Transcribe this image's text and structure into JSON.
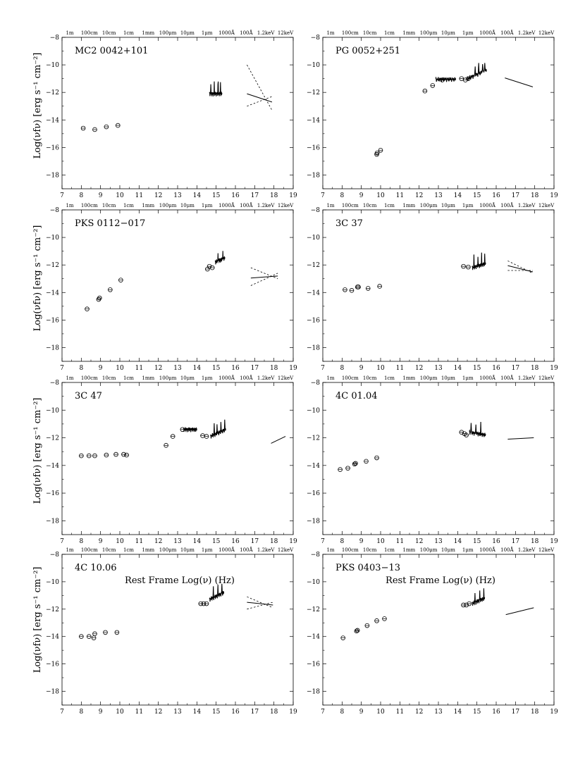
{
  "figure": {
    "xlabel": "Rest Frame Log(ν) (Hz)",
    "ylabel": "Log(νfν) [erg s⁻¹ cm⁻²]",
    "top_axis_labels": [
      "1m",
      "100cm",
      "10cm",
      "1cm",
      "1mm",
      "100μm",
      "10μm",
      "1μm",
      "1000Å",
      "100Å",
      "1.2keV",
      "12keV"
    ]
  },
  "chart_data": [
    {
      "type": "scatter",
      "title": "MC2 0042+101",
      "xlim": [
        7,
        19
      ],
      "ylim": [
        -19,
        -8
      ],
      "xticks": [
        7,
        8,
        9,
        10,
        11,
        12,
        13,
        14,
        15,
        16,
        17,
        18,
        19
      ],
      "yticks": [
        -8,
        -10,
        -12,
        -14,
        -16,
        -18
      ],
      "photometry": [
        [
          8.1,
          -14.6
        ],
        [
          8.7,
          -14.7
        ],
        [
          9.3,
          -14.5
        ],
        [
          9.9,
          -14.4
        ]
      ],
      "optical_spectrum": {
        "x_range": [
          14.65,
          15.3
        ],
        "y_level": -12.1,
        "spikes": [
          14.72,
          14.9,
          15.1,
          15.22
        ]
      },
      "xray": {
        "x_range": [
          16.6,
          17.9
        ],
        "fit": [
          -12.1,
          -12.7
        ],
        "bounds": [
          [
            -10.0,
            -13.3
          ],
          [
            -13.0,
            -12.3
          ]
        ]
      }
    },
    {
      "type": "scatter",
      "title": "PG 0052+251",
      "xlim": [
        7,
        19
      ],
      "ylim": [
        -19,
        -8
      ],
      "xticks": [
        7,
        8,
        9,
        10,
        11,
        12,
        13,
        14,
        15,
        16,
        17,
        18,
        19
      ],
      "yticks": [
        -8,
        -10,
        -12,
        -14,
        -16,
        -18
      ],
      "photometry": [
        [
          9.8,
          -16.5
        ],
        [
          9.82,
          -16.4
        ],
        [
          10.0,
          -16.2
        ],
        [
          12.3,
          -11.9
        ],
        [
          12.7,
          -11.5
        ],
        [
          13.2,
          -11.1
        ],
        [
          14.2,
          -11.0
        ],
        [
          14.4,
          -11.1
        ],
        [
          14.55,
          -11.0
        ]
      ],
      "ir_spectrum": {
        "x_range": [
          12.85,
          13.9
        ],
        "y_level": -11.05
      },
      "optical_spectrum": {
        "x_range": [
          14.5,
          15.5
        ],
        "y_start": -11.0,
        "y_end": -10.4,
        "spikes": [
          14.9,
          15.1,
          15.3,
          15.4
        ]
      },
      "xray": {
        "x_range": [
          16.45,
          17.9
        ],
        "fit": [
          -10.95,
          -11.6
        ]
      }
    },
    {
      "type": "scatter",
      "title": "PKS 0112−017",
      "xlim": [
        7,
        19
      ],
      "ylim": [
        -19,
        -8
      ],
      "xticks": [
        7,
        8,
        9,
        10,
        11,
        12,
        13,
        14,
        15,
        16,
        17,
        18,
        19
      ],
      "yticks": [
        -8,
        -10,
        -12,
        -14,
        -16,
        -18
      ],
      "photometry": [
        [
          8.3,
          -15.2
        ],
        [
          8.9,
          -14.5
        ],
        [
          8.95,
          -14.4
        ],
        [
          9.5,
          -13.8
        ],
        [
          10.05,
          -13.1
        ],
        [
          14.55,
          -12.3
        ],
        [
          14.65,
          -12.1
        ],
        [
          14.8,
          -12.2
        ]
      ],
      "optical_spectrum": {
        "x_range": [
          14.95,
          15.45
        ],
        "y_start": -11.8,
        "y_end": -11.5,
        "spikes": [
          15.1,
          15.35
        ]
      },
      "xray": {
        "x_range": [
          16.8,
          18.2
        ],
        "fit": [
          -12.95,
          -12.8
        ],
        "bounds": [
          [
            -12.2,
            -13.0
          ],
          [
            -13.5,
            -12.6
          ]
        ]
      }
    },
    {
      "type": "scatter",
      "title": "3C 37",
      "xlim": [
        7,
        19
      ],
      "ylim": [
        -19,
        -8
      ],
      "xticks": [
        7,
        8,
        9,
        10,
        11,
        12,
        13,
        14,
        15,
        16,
        17,
        18,
        19
      ],
      "yticks": [
        -8,
        -10,
        -12,
        -14,
        -16,
        -18
      ],
      "photometry": [
        [
          8.15,
          -13.8
        ],
        [
          8.5,
          -13.85
        ],
        [
          8.8,
          -13.6
        ],
        [
          8.85,
          -13.6
        ],
        [
          9.35,
          -13.7
        ],
        [
          9.95,
          -13.55
        ],
        [
          14.3,
          -12.1
        ],
        [
          14.55,
          -12.15
        ]
      ],
      "optical_spectrum": {
        "x_range": [
          14.75,
          15.45
        ],
        "y_start": -12.2,
        "y_end": -11.9,
        "spikes": [
          14.85,
          15.05,
          15.25,
          15.4
        ]
      },
      "xray": {
        "x_range": [
          16.6,
          17.9
        ],
        "fit": [
          -12.05,
          -12.5
        ],
        "bounds": [
          [
            -11.7,
            -12.6
          ],
          [
            -12.4,
            -12.4
          ]
        ]
      }
    },
    {
      "type": "scatter",
      "title": "3C 47",
      "xlim": [
        7,
        19
      ],
      "ylim": [
        -19,
        -8
      ],
      "xticks": [
        7,
        8,
        9,
        10,
        11,
        12,
        13,
        14,
        15,
        16,
        17,
        18,
        19
      ],
      "yticks": [
        -8,
        -10,
        -12,
        -14,
        -16,
        -18
      ],
      "photometry": [
        [
          8.0,
          -13.3
        ],
        [
          8.4,
          -13.3
        ],
        [
          8.7,
          -13.3
        ],
        [
          9.3,
          -13.25
        ],
        [
          9.8,
          -13.2
        ],
        [
          10.2,
          -13.2
        ],
        [
          10.35,
          -13.25
        ],
        [
          12.4,
          -12.55
        ],
        [
          12.75,
          -11.9
        ],
        [
          13.25,
          -11.4
        ],
        [
          14.3,
          -11.85
        ],
        [
          14.5,
          -11.9
        ]
      ],
      "ir_spectrum": {
        "x_range": [
          13.3,
          14.0
        ],
        "y_level": -11.4
      },
      "optical_spectrum": {
        "x_range": [
          14.7,
          15.5
        ],
        "y_start": -11.9,
        "y_end": -11.4,
        "spikes": [
          14.9,
          15.05,
          15.25,
          15.45
        ]
      },
      "xray": {
        "x_range": [
          17.85,
          18.6
        ],
        "fit": [
          -12.4,
          -11.9
        ]
      }
    },
    {
      "type": "scatter",
      "title": "4C 01.04",
      "xlim": [
        7,
        19
      ],
      "ylim": [
        -19,
        -8
      ],
      "xticks": [
        7,
        8,
        9,
        10,
        11,
        12,
        13,
        14,
        15,
        16,
        17,
        18,
        19
      ],
      "yticks": [
        -8,
        -10,
        -12,
        -14,
        -16,
        -18
      ],
      "photometry": [
        [
          7.9,
          -14.3
        ],
        [
          8.3,
          -14.2
        ],
        [
          8.65,
          -13.9
        ],
        [
          8.7,
          -13.85
        ],
        [
          9.25,
          -13.7
        ],
        [
          9.8,
          -13.45
        ],
        [
          14.2,
          -11.6
        ],
        [
          14.35,
          -11.7
        ],
        [
          14.45,
          -11.8
        ]
      ],
      "optical_spectrum": {
        "x_range": [
          14.6,
          15.45
        ],
        "y_start": -11.6,
        "y_end": -11.8,
        "spikes": [
          14.7,
          14.95,
          15.2
        ]
      },
      "xray": {
        "x_range": [
          16.6,
          17.95
        ],
        "fit": [
          -12.1,
          -12.0
        ]
      }
    },
    {
      "type": "scatter",
      "title": "4C 10.06",
      "xlim": [
        7,
        19
      ],
      "ylim": [
        -19,
        -8
      ],
      "xticks": [
        7,
        8,
        9,
        10,
        11,
        12,
        13,
        14,
        15,
        16,
        17,
        18,
        19
      ],
      "yticks": [
        -8,
        -10,
        -12,
        -14,
        -16,
        -18
      ],
      "photometry": [
        [
          8.0,
          -14.0
        ],
        [
          8.4,
          -14.0
        ],
        [
          8.65,
          -14.1
        ],
        [
          8.7,
          -13.8
        ],
        [
          9.25,
          -13.7
        ],
        [
          9.85,
          -13.7
        ],
        [
          14.2,
          -11.6
        ],
        [
          14.35,
          -11.6
        ],
        [
          14.5,
          -11.6
        ]
      ],
      "optical_spectrum": {
        "x_range": [
          14.65,
          15.4
        ],
        "y_start": -11.3,
        "y_end": -10.8,
        "spikes": [
          14.85,
          15.1,
          15.3
        ]
      },
      "xray": {
        "x_range": [
          16.6,
          17.95
        ],
        "fit": [
          -11.5,
          -11.7
        ],
        "bounds": [
          [
            -11.1,
            -11.9
          ],
          [
            -12.0,
            -11.5
          ]
        ]
      }
    },
    {
      "type": "scatter",
      "title": "PKS 0403−13",
      "xlim": [
        7,
        19
      ],
      "ylim": [
        -19,
        -8
      ],
      "xticks": [
        7,
        8,
        9,
        10,
        11,
        12,
        13,
        14,
        15,
        16,
        17,
        18,
        19
      ],
      "yticks": [
        -8,
        -10,
        -12,
        -14,
        -16,
        -18
      ],
      "photometry": [
        [
          8.05,
          -14.1
        ],
        [
          8.75,
          -13.6
        ],
        [
          8.8,
          -13.55
        ],
        [
          9.3,
          -13.2
        ],
        [
          9.8,
          -12.85
        ],
        [
          10.2,
          -12.7
        ],
        [
          14.3,
          -11.7
        ],
        [
          14.45,
          -11.7
        ],
        [
          14.6,
          -11.6
        ]
      ],
      "optical_spectrum": {
        "x_range": [
          14.75,
          15.4
        ],
        "y_start": -11.6,
        "y_end": -11.2,
        "spikes": [
          14.9,
          15.15,
          15.35
        ]
      },
      "xray": {
        "x_range": [
          16.5,
          17.95
        ],
        "fit": [
          -12.4,
          -11.9
        ]
      }
    }
  ]
}
